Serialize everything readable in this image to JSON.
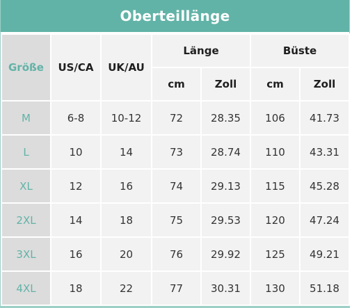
{
  "title": "Oberteillänge",
  "headers": {
    "size": "Größe",
    "us_ca": "US/CA",
    "uk_au": "UK/AU",
    "length": "Länge",
    "bust": "Büste",
    "length_cm": "cm",
    "length_inch": "Zoll",
    "bust_cm": "cm",
    "bust_inch": "Zoll"
  },
  "rows": [
    {
      "size": "M",
      "us": "6-8",
      "uk": "10-12",
      "len_cm": "72",
      "len_in": "28.35",
      "bust_cm": "106",
      "bust_in": "41.73"
    },
    {
      "size": "L",
      "us": "10",
      "uk": "14",
      "len_cm": "73",
      "len_in": "28.74",
      "bust_cm": "110",
      "bust_in": "43.31"
    },
    {
      "size": "XL",
      "us": "12",
      "uk": "16",
      "len_cm": "74",
      "len_in": "29.13",
      "bust_cm": "115",
      "bust_in": "45.28"
    },
    {
      "size": "2XL",
      "us": "14",
      "uk": "18",
      "len_cm": "75",
      "len_in": "29.53",
      "bust_cm": "120",
      "bust_in": "47.24"
    },
    {
      "size": "3XL",
      "us": "16",
      "uk": "20",
      "len_cm": "76",
      "len_in": "29.92",
      "bust_cm": "125",
      "bust_in": "49.21"
    },
    {
      "size": "4XL",
      "us": "18",
      "uk": "22",
      "len_cm": "77",
      "len_in": "30.31",
      "bust_cm": "130",
      "bust_in": "51.18"
    }
  ],
  "colors": {
    "accent": "#62b3a7",
    "cell_bg": "#f2f2f2",
    "size_col_bg": "#dcdcdc"
  }
}
